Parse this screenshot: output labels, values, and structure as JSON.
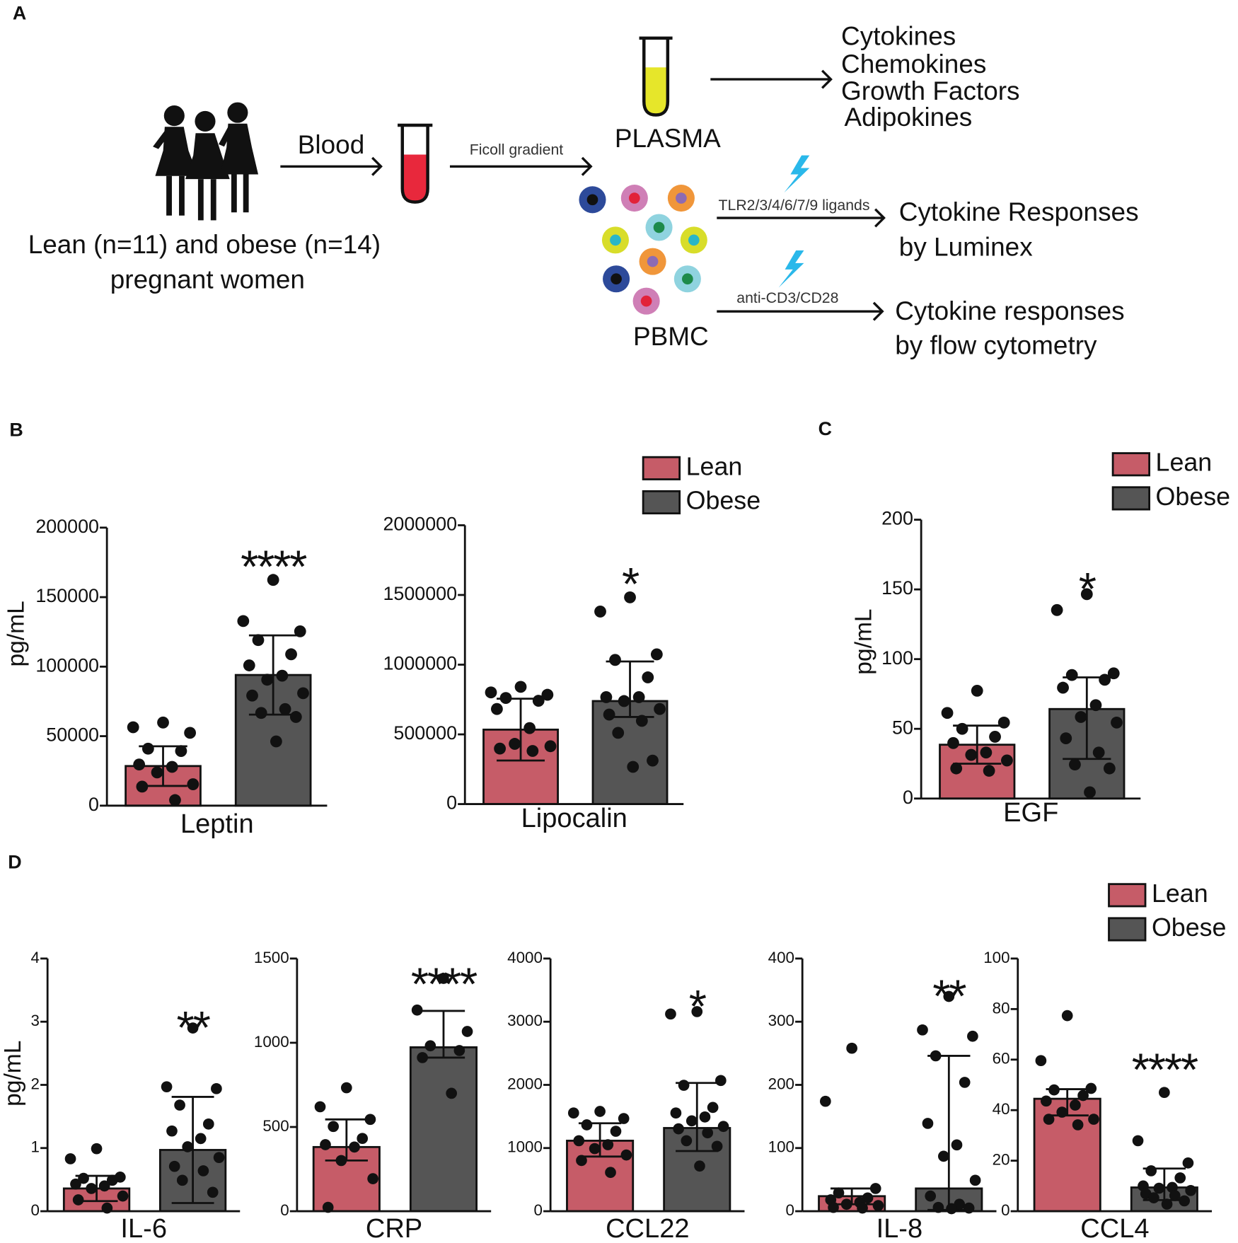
{
  "panel_labels": [
    "A",
    "B",
    "C",
    "D"
  ],
  "diagram": {
    "subjects": [
      "Lean (n=11) and obese (n=14)",
      "pregnant women"
    ],
    "step_blood": "Blood",
    "step_ficoll": "Ficoll gradient",
    "plasma": "PLASMA",
    "plasma_outputs": [
      "Cytokines",
      "Chemokines",
      "Growth Factors",
      "Adipokines"
    ],
    "pbmc": "PBMC",
    "stim_tlr": "TLR2/3/4/6/7/9 ligands",
    "out_luminex": [
      "Cytokine Responses",
      "by Luminex"
    ],
    "stim_cd3": "anti-CD3/CD28",
    "out_flow": [
      "Cytokine responses",
      "by flow cytometry"
    ]
  },
  "chart_data": [
    {
      "type": "bar",
      "categories": [
        "Leptin"
      ],
      "ylabel": "pg/mL",
      "annotation": "****",
      "ylim": [
        0,
        200000
      ],
      "yticks": [
        0,
        50000,
        100000,
        150000,
        200000
      ],
      "series": [
        {
          "name": "Lean",
          "color": "#c65c68",
          "values": [
            28500
          ],
          "error_low": [
            14200
          ],
          "error_high": [
            42700
          ],
          "points": [
            [
              59800,
              56400,
              52400,
              41000,
              39300,
              29600,
              27900,
              23900,
              15400,
              13700,
              4000
            ]
          ]
        },
        {
          "name": "Obese",
          "color": "#555555",
          "values": [
            94000
          ],
          "error_low": [
            65500
          ],
          "error_high": [
            122500
          ],
          "points": [
            [
              162400,
              132800,
              125400,
              119100,
              108900,
              100900,
              93500,
              90600,
              80900,
              79200,
              69500,
              66700,
              63800,
              46200
            ]
          ]
        }
      ]
    },
    {
      "type": "bar",
      "categories": [
        "Lipocalin"
      ],
      "annotation": "*",
      "legend": "upper right",
      "ylim": [
        0,
        2000000
      ],
      "yticks": [
        0,
        500000,
        1000000,
        1500000,
        2000000
      ],
      "series": [
        {
          "name": "Lean",
          "color": "#c65c68",
          "values": [
            534000
          ],
          "error_low": [
            312500
          ],
          "error_high": [
            756000
          ],
          "points": [
            [
              841000,
              801000,
              784000,
              761000,
              741000,
              682000,
              545000,
              432000,
              415000,
              398000,
              381000
            ]
          ]
        },
        {
          "name": "Obese",
          "color": "#555555",
          "values": [
            739000
          ],
          "error_low": [
            625000
          ],
          "error_high": [
            1023000
          ],
          "points": [
            [
              1483000,
              1381000,
              1074000,
              1034000,
              909000,
              767000,
              767000,
              739000,
              682000,
              642000,
              597000,
              511000,
              312000,
              267000
            ]
          ]
        }
      ]
    },
    {
      "type": "bar",
      "categories": [
        "EGF"
      ],
      "ylabel": "pg/mL",
      "annotation": "*",
      "legend": "upper right",
      "ylim": [
        0,
        200
      ],
      "yticks": [
        0,
        50,
        100,
        150,
        200
      ],
      "series": [
        {
          "name": "Lean",
          "color": "#c65c68",
          "values": [
            38.6
          ],
          "error_low": [
            25
          ],
          "error_high": [
            52.3
          ],
          "points": [
            [
              77.3,
              61.4,
              54.5,
              50,
              44.3,
              39.8,
              33,
              31.3,
              27.3,
              21.6,
              19.9
            ]
          ]
        },
        {
          "name": "Obese",
          "color": "#555555",
          "values": [
            64.2
          ],
          "error_low": [
            28.4
          ],
          "error_high": [
            86.9
          ],
          "points": [
            [
              146.6,
              135.2,
              89.8,
              88.6,
              85.2,
              79.5,
              67,
              58.5,
              54.5,
              43.2,
              33,
              24.4,
              21.6,
              4.5
            ]
          ]
        }
      ]
    },
    {
      "type": "bar",
      "categories": [
        "IL-6"
      ],
      "ylabel": "pg/mL",
      "annotation": "**",
      "ylim": [
        0,
        4
      ],
      "yticks": [
        0,
        1,
        2,
        3,
        4
      ],
      "series": [
        {
          "name": "Lean",
          "color": "#c65c68",
          "values": [
            0.36
          ],
          "error_low": [
            0.16
          ],
          "error_high": [
            0.56
          ],
          "points": [
            [
              0.99,
              0.83,
              0.54,
              0.52,
              0.49,
              0.43,
              0.4,
              0.36,
              0.24,
              0.18,
              0.05
            ]
          ]
        },
        {
          "name": "Obese",
          "color": "#555555",
          "values": [
            0.97
          ],
          "error_low": [
            0.13
          ],
          "error_high": [
            1.81
          ],
          "points": [
            [
              2.9,
              1.97,
              1.94,
              1.68,
              1.38,
              1.27,
              1.15,
              1.02,
              0.85,
              0.71,
              0.64,
              0.49,
              0.3
            ]
          ]
        }
      ]
    },
    {
      "type": "bar",
      "categories": [
        "CRP"
      ],
      "annotation": "****",
      "ylim": [
        0,
        1500
      ],
      "yticks": [
        0,
        500,
        1000,
        1500
      ],
      "series": [
        {
          "name": "Lean",
          "color": "#c65c68",
          "values": [
            381
          ],
          "error_low": [
            301
          ],
          "error_high": [
            545
          ],
          "points": [
            [
              733,
              620,
              545,
              503,
              432,
              395,
              381,
              301,
              193,
              23
            ]
          ]
        },
        {
          "name": "Obese",
          "color": "#555555",
          "values": [
            973
          ],
          "error_low": [
            912
          ],
          "error_high": [
            1189
          ],
          "points": [
            [
              1382,
              1194,
              1067,
              982,
              954,
              912,
              700
            ]
          ]
        }
      ]
    },
    {
      "type": "bar",
      "categories": [
        "CCL22"
      ],
      "annotation": "*",
      "ylim": [
        0,
        4000
      ],
      "yticks": [
        0,
        1000,
        2000,
        3000,
        4000
      ],
      "series": [
        {
          "name": "Lean",
          "color": "#c65c68",
          "values": [
            1116
          ],
          "error_low": [
            865
          ],
          "error_high": [
            1392
          ],
          "points": [
            [
              1580,
              1555,
              1467,
              1367,
              1266,
              1116,
              1053,
              991,
              890,
              803,
              614
            ]
          ]
        },
        {
          "name": "Obese",
          "color": "#555555",
          "values": [
            1317
          ],
          "error_low": [
            953
          ],
          "error_high": [
            2031
          ],
          "points": [
            [
              3160,
              3122,
              2069,
              1994,
              1643,
              1555,
              1492,
              1430,
              1342,
              1304,
              1241,
              1116,
              1028,
              715
            ]
          ]
        }
      ]
    },
    {
      "type": "bar",
      "categories": [
        "IL-8"
      ],
      "annotation": "**",
      "ylim": [
        0,
        400
      ],
      "yticks": [
        0,
        100,
        200,
        300,
        400
      ],
      "series": [
        {
          "name": "Lean",
          "color": "#c65c68",
          "values": [
            23.8
          ],
          "error_low": [
            11
          ],
          "error_high": [
            36
          ],
          "points": [
            [
              258,
              174,
              36,
              29,
              21,
              18,
              14,
              11,
              9,
              6,
              5
            ]
          ]
        },
        {
          "name": "Obese",
          "color": "#555555",
          "values": [
            36
          ],
          "error_low": [
            2
          ],
          "error_high": [
            246
          ],
          "points": [
            [
              340,
              287,
              277,
              246,
              204,
              139,
              105,
              87,
              49,
              24,
              11,
              6,
              5,
              4
            ]
          ]
        }
      ]
    },
    {
      "type": "bar",
      "categories": [
        "CCL4"
      ],
      "annotation": "****",
      "legend": "upper right",
      "ylim": [
        0,
        100
      ],
      "yticks": [
        0,
        20,
        40,
        60,
        80,
        100
      ],
      "series": [
        {
          "name": "Lean",
          "color": "#c65c68",
          "values": [
            44.5
          ],
          "error_low": [
            37.9
          ],
          "error_high": [
            48.3
          ],
          "points": [
            [
              77.4,
              59.6,
              48.6,
              48,
              45.8,
              43.6,
              42,
              39.2,
              36.4,
              36.4,
              34.2
            ]
          ]
        },
        {
          "name": "Obese",
          "color": "#555555",
          "values": [
            9.4
          ],
          "error_low": [
            4.4
          ],
          "error_high": [
            16.9
          ],
          "points": [
            [
              47,
              27.9,
              19.1,
              16,
              13.2,
              10,
              9.4,
              9.1,
              8.2,
              6.9,
              6.2,
              5.3,
              4.1,
              2.8
            ]
          ]
        }
      ]
    }
  ]
}
